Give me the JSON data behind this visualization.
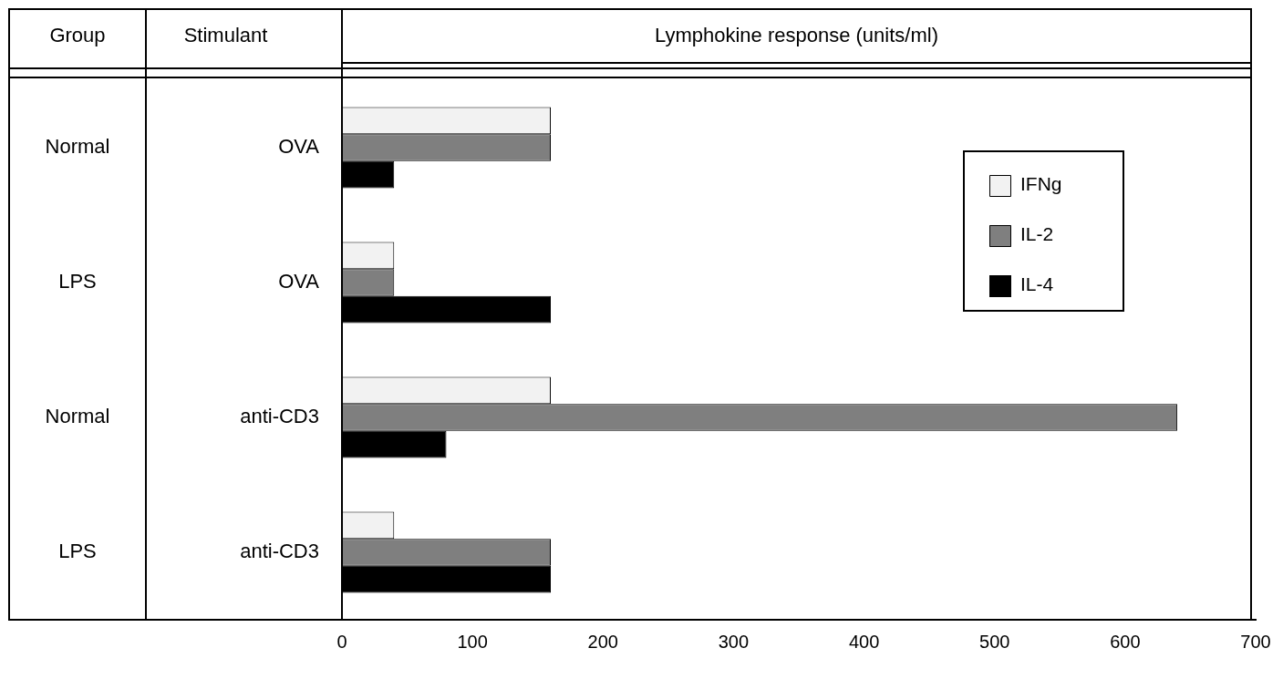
{
  "chart_data": {
    "type": "bar",
    "orientation": "horizontal",
    "xlabel": "Lymphokine response (units/ml)",
    "categories": [
      "OVA",
      "OVA",
      "anti-CD3",
      "anti-CD3"
    ],
    "y2_categories": [
      "Normal",
      "LPS",
      "Normal",
      "LPS"
    ],
    "annotations": [
      "Group",
      "Stimulant"
    ],
    "series": [
      {
        "name": "IFNg",
        "color": "#f2f2f2",
        "values": [
          160,
          40,
          160,
          40
        ]
      },
      {
        "name": "IL-2",
        "color": "#7f7f7f",
        "values": [
          160,
          40,
          640,
          160
        ]
      },
      {
        "name": "IL-4",
        "color": "#000000",
        "values": [
          40,
          160,
          80,
          160
        ]
      }
    ],
    "xlim": [
      0,
      700
    ],
    "xticks": [
      0,
      100,
      200,
      300,
      400,
      500,
      600,
      700
    ],
    "grid": false,
    "legend": "top right"
  }
}
